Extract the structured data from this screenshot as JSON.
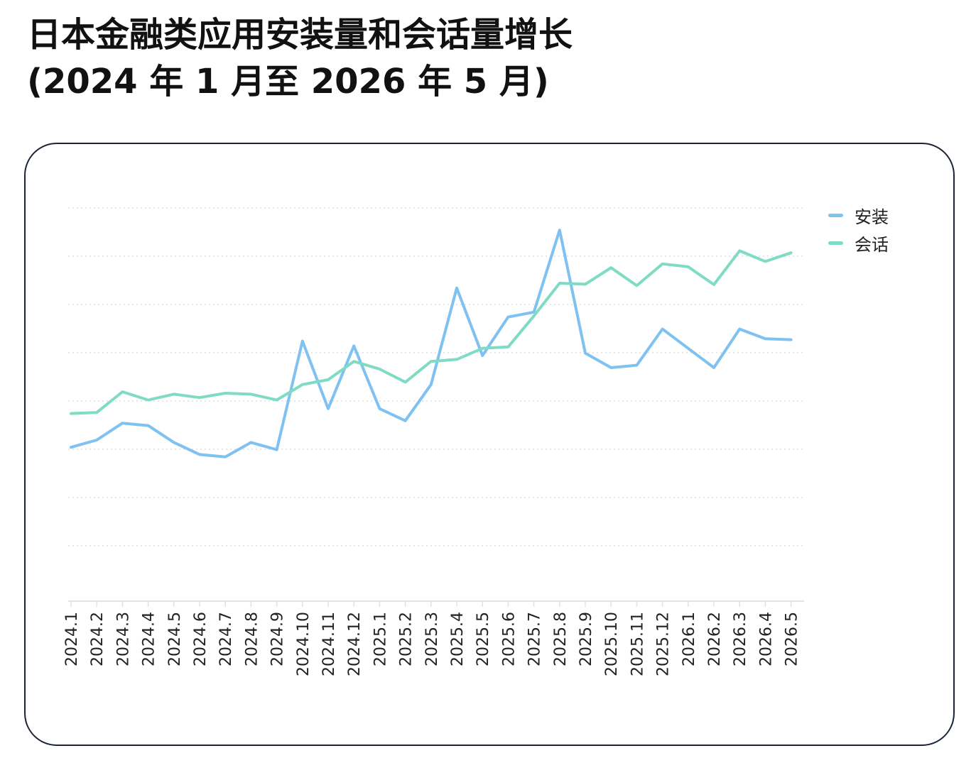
{
  "title_line1": "日本金融类应用安装量和会话量增长",
  "title_line2": "(2024 年 1 月至 2026 年 5 月)",
  "colors": {
    "installs": "#7fc1f1",
    "sessions": "#7fdcc4",
    "grid": "#dddddd",
    "axis": "#e2e2e2",
    "frame": "#1b2536"
  },
  "chart_data": {
    "type": "line",
    "x": [
      "2024.1",
      "2024.2",
      "2024.3",
      "2024.4",
      "2024.5",
      "2024.6",
      "2024.7",
      "2024.8",
      "2024.9",
      "2024.10",
      "2024.11",
      "2024.12",
      "2025.1",
      "2025.2",
      "2025.3",
      "2025.4",
      "2025.5",
      "2025.6",
      "2025.7",
      "2025.8",
      "2025.9",
      "2025.10",
      "2025.11",
      "2025.12",
      "2026.1",
      "2026.2",
      "2026.3",
      "2026.4",
      "2026.5"
    ],
    "series": [
      {
        "name": "安装",
        "color": "#7fc1f1",
        "values": [
          3.1,
          3.25,
          3.6,
          3.55,
          3.2,
          2.95,
          2.9,
          3.2,
          3.05,
          5.3,
          3.9,
          5.2,
          3.9,
          3.65,
          4.4,
          6.4,
          5.0,
          5.8,
          5.9,
          7.6,
          5.05,
          4.75,
          4.8,
          5.55,
          5.15,
          4.75,
          5.55,
          5.35,
          5.33
        ]
      },
      {
        "name": "会话",
        "color": "#7fdcc4",
        "values": [
          3.8,
          3.82,
          4.25,
          4.08,
          4.2,
          4.13,
          4.22,
          4.2,
          4.08,
          4.4,
          4.5,
          4.88,
          4.72,
          4.45,
          4.88,
          4.92,
          5.15,
          5.18,
          5.82,
          6.5,
          6.48,
          6.82,
          6.45,
          6.9,
          6.84,
          6.47,
          7.17,
          6.95,
          7.13
        ]
      }
    ],
    "ylim": [
      0,
      8
    ],
    "grid": "horizontal-dotted",
    "legend": "top-right"
  }
}
